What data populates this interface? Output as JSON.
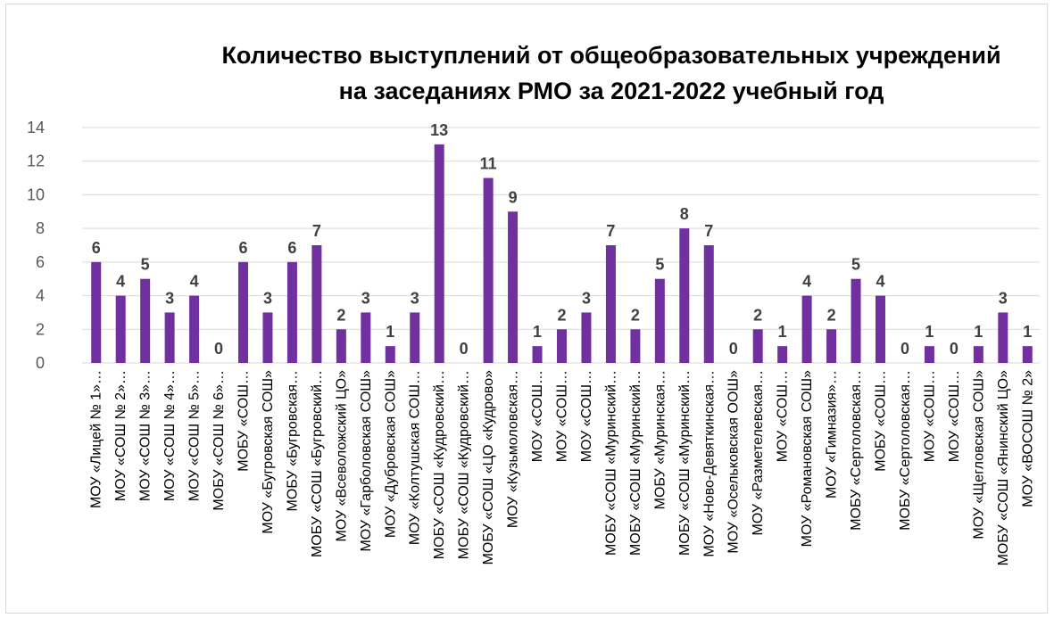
{
  "chart_data": {
    "type": "bar",
    "title_line1": "Количество выступлений от общеобразовательных учреждений",
    "title_line2": "на заседаниях РМО за 2021-2022 учебный год",
    "xlabel": "",
    "ylabel": "",
    "ylim": [
      0,
      14
    ],
    "yticks": [
      "0",
      "2",
      "4",
      "6",
      "8",
      "10",
      "12",
      "14"
    ],
    "grid": true,
    "bar_color": "#7030a0",
    "grid_color": "#d9d9d9",
    "categories": [
      "МОУ «Лицей № 1»…",
      "МОУ «СОШ № 2»…",
      "МОУ «СОШ № 3»…",
      "МОУ «СОШ № 4»…",
      "МОУ «СОШ № 5»…",
      "МОБУ «СОШ № 6»…",
      "МОБУ «СОШ…",
      "МОУ «Бугровская СОШ»",
      "МОБУ «Бугровская…",
      "МОБУ «СОШ «Бугровский…",
      "МОУ «Всеволожский ЦО»",
      "МОУ «Гарболовская СОШ»",
      "МОУ «Дубровская СОШ»",
      "МОУ «Колтушская СОШ…",
      "МОБУ «СОШ «Кудровский…",
      "МОБУ «СОШ «Кудровский…",
      "МОБУ «СОШ «ЦО «Кудрово»",
      "МОУ «Кузьмоловская…",
      "МОУ «СОШ…",
      "МОУ «СОШ…",
      "МОУ «СОШ…",
      "МОБУ «СОШ «Муринский…",
      "МОБУ «СОШ «Муринский…",
      "МОБУ «Муринская…",
      "МОБУ «СОШ «Муринский…",
      "МОУ «Ново-Девяткинская…",
      "МОУ «Осельковская ООШ»",
      "МОУ «Разметелевская…",
      "МОУ «СОШ…",
      "МОУ «Романовская СОШ»",
      "МОУ «Гимназия»…",
      "МОБУ «Сертоловская…",
      "МОБУ «СОШ…",
      "МОБУ «Сертоловская…",
      "МОУ «СОШ…",
      "МОУ «СОШ…",
      "МОУ «Щегловская СОШ»",
      "МОБУ «СОШ «Янинский ЦО»",
      "МОУ «ВОСОШ № 2»"
    ],
    "values": [
      6,
      4,
      5,
      3,
      4,
      0,
      6,
      3,
      6,
      7,
      2,
      3,
      1,
      3,
      13,
      0,
      11,
      9,
      1,
      2,
      3,
      7,
      2,
      5,
      8,
      7,
      0,
      2,
      1,
      4,
      2,
      5,
      4,
      0,
      1,
      0,
      1,
      3,
      1
    ]
  }
}
